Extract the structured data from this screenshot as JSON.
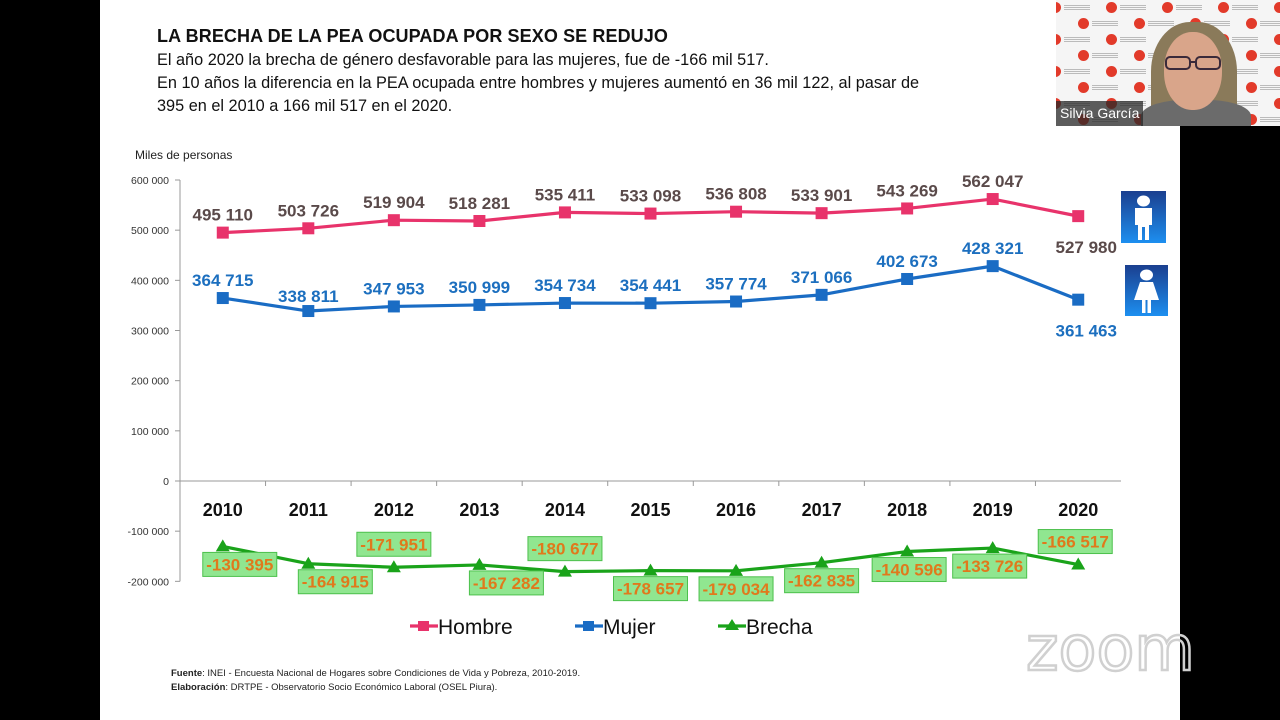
{
  "slide": {
    "title": "LA BRECHA DE LA PEA OCUPADA POR SEXO SE REDUJO",
    "subtitle_lines": [
      "El año 2020 la brecha de género desfavorable para las mujeres,  fue de -166 mil  517.",
      "En 10 años la diferencia en la PEA ocupada entre hombres y mujeres aumentó en 36 mil 122, al pasar de",
      "395 en el 2010 a 166 mil 517 en el 2020."
    ],
    "source_label": "Fuente",
    "source_text": ": INEI - Encuesta Nacional de Hogares sobre Condiciones de Vida y Pobreza,  2010-2019.",
    "elaboration_label": "Elaboración",
    "elaboration_text": ": DRTPE - Observatorio  Socio Económico Laboral  (OSEL Piura)."
  },
  "video": {
    "participant_name": "Silvia García"
  },
  "watermark": {
    "text": "zoom"
  },
  "icons": {
    "male": "man-icon",
    "female": "woman-icon"
  },
  "chart_data": {
    "type": "line",
    "title": "",
    "ylabel": "Miles de personas",
    "xlabel": "",
    "categories": [
      "2010",
      "2011",
      "2012",
      "2013",
      "2014",
      "2015",
      "2016",
      "2017",
      "2018",
      "2019",
      "2020"
    ],
    "ylim": [
      -200000,
      600000
    ],
    "yticks": [
      600000,
      500000,
      400000,
      300000,
      200000,
      100000,
      0,
      -100000,
      -200000
    ],
    "ytick_labels": [
      "600 000",
      "500 000",
      "400 000",
      "300 000",
      "200 000",
      "100 000",
      "0",
      "-100 000",
      "-200 000"
    ],
    "grid": false,
    "legend_position": "bottom",
    "series": [
      {
        "name": "Hombre",
        "color": "#e8336b",
        "marker": "square",
        "label_color": "#5a4a4a",
        "values": [
          495110,
          503726,
          519904,
          518281,
          535411,
          533098,
          536808,
          533901,
          543269,
          562047,
          527980
        ],
        "labels": [
          "495 110",
          "503 726",
          "519 904",
          "518 281",
          "535 411",
          "533 098",
          "536 808",
          "533 901",
          "543 269",
          "562 047",
          "527 980"
        ],
        "label_side": [
          "above",
          "above",
          "above",
          "above",
          "above",
          "above",
          "above",
          "above",
          "above",
          "above",
          "below"
        ]
      },
      {
        "name": "Mujer",
        "color": "#1a6cc4",
        "marker": "square",
        "label_color": "#1c6fbf",
        "values": [
          364715,
          338811,
          347953,
          350999,
          354734,
          354441,
          357774,
          371066,
          402673,
          428321,
          361463
        ],
        "labels": [
          "364 715",
          "338 811",
          "347 953",
          "350 999",
          "354 734",
          "354 441",
          "357 774",
          "371 066",
          "402 673",
          "428 321",
          "361 463"
        ],
        "label_side": [
          "above",
          "above",
          "above",
          "above",
          "above",
          "above",
          "above",
          "above",
          "above",
          "above",
          "below"
        ]
      },
      {
        "name": "Brecha",
        "color": "#1aa31a",
        "marker": "triangle",
        "label_color": "#e0791c",
        "label_box_fill": "#90e690",
        "label_box_stroke": "#4cc04c",
        "values": [
          -130395,
          -164915,
          -171951,
          -167282,
          -180677,
          -178657,
          -179034,
          -162835,
          -140596,
          -133726,
          -166517
        ],
        "labels": [
          "-130 395",
          "-164 915",
          "-171 951",
          "-167 282",
          "-180 677",
          "-178 657",
          "-179 034",
          "-162 835",
          "-140 596",
          "-133 726",
          "-166 517"
        ],
        "label_side": [
          "below",
          "below",
          "above",
          "below",
          "above",
          "below",
          "below",
          "below",
          "below",
          "below",
          "above"
        ]
      }
    ]
  }
}
